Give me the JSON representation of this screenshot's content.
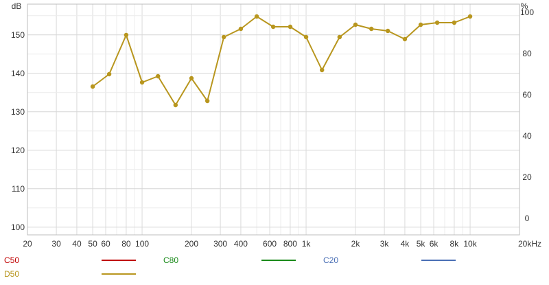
{
  "chart_data": {
    "type": "line",
    "x_scale": "log",
    "left_axis": {
      "unit": "dB",
      "ticks": [
        100,
        110,
        120,
        130,
        140,
        150
      ],
      "range": [
        98,
        158
      ]
    },
    "right_axis": {
      "unit": "%",
      "ticks": [
        0,
        20,
        40,
        60,
        80,
        100
      ],
      "range": [
        -8,
        104
      ]
    },
    "x_axis": {
      "range": [
        20,
        20000
      ],
      "unit": "kHz",
      "ticks": [
        {
          "value": 20,
          "label": "20"
        },
        {
          "value": 30,
          "label": "30"
        },
        {
          "value": 40,
          "label": "40"
        },
        {
          "value": 50,
          "label": "50"
        },
        {
          "value": 60,
          "label": "60"
        },
        {
          "value": 80,
          "label": "80"
        },
        {
          "value": 100,
          "label": "100"
        },
        {
          "value": 200,
          "label": "200"
        },
        {
          "value": 300,
          "label": "300"
        },
        {
          "value": 400,
          "label": "400"
        },
        {
          "value": 600,
          "label": "600"
        },
        {
          "value": 800,
          "label": "800"
        },
        {
          "value": 1000,
          "label": "1k"
        },
        {
          "value": 2000,
          "label": "2k"
        },
        {
          "value": 3000,
          "label": "3k"
        },
        {
          "value": 4000,
          "label": "4k"
        },
        {
          "value": 5000,
          "label": "5k"
        },
        {
          "value": 6000,
          "label": "6k"
        },
        {
          "value": 8000,
          "label": "8k"
        },
        {
          "value": 10000,
          "label": "10k"
        },
        {
          "value": 20000,
          "label": "20kHz"
        }
      ]
    },
    "grid": true,
    "legend_position": "bottom",
    "legend": [
      {
        "name": "C50",
        "color": "#c00000"
      },
      {
        "name": "C80",
        "color": "#1a8a1a"
      },
      {
        "name": "C20",
        "color": "#4a6fb5"
      },
      {
        "name": "D50",
        "color": "#b8961e"
      }
    ],
    "series": [
      {
        "name": "D50",
        "axis": "right",
        "color": "#b8961e",
        "x": [
          50,
          63,
          80,
          100,
          125,
          160,
          200,
          250,
          315,
          400,
          500,
          630,
          800,
          1000,
          1250,
          1600,
          2000,
          2500,
          3150,
          4000,
          5000,
          6300,
          8000,
          10000
        ],
        "values": [
          64,
          70,
          89,
          66,
          69,
          55,
          68,
          57,
          88,
          92,
          98,
          93,
          93,
          88,
          72,
          88,
          94,
          92,
          91,
          87,
          94,
          95,
          95,
          98
        ]
      }
    ]
  }
}
